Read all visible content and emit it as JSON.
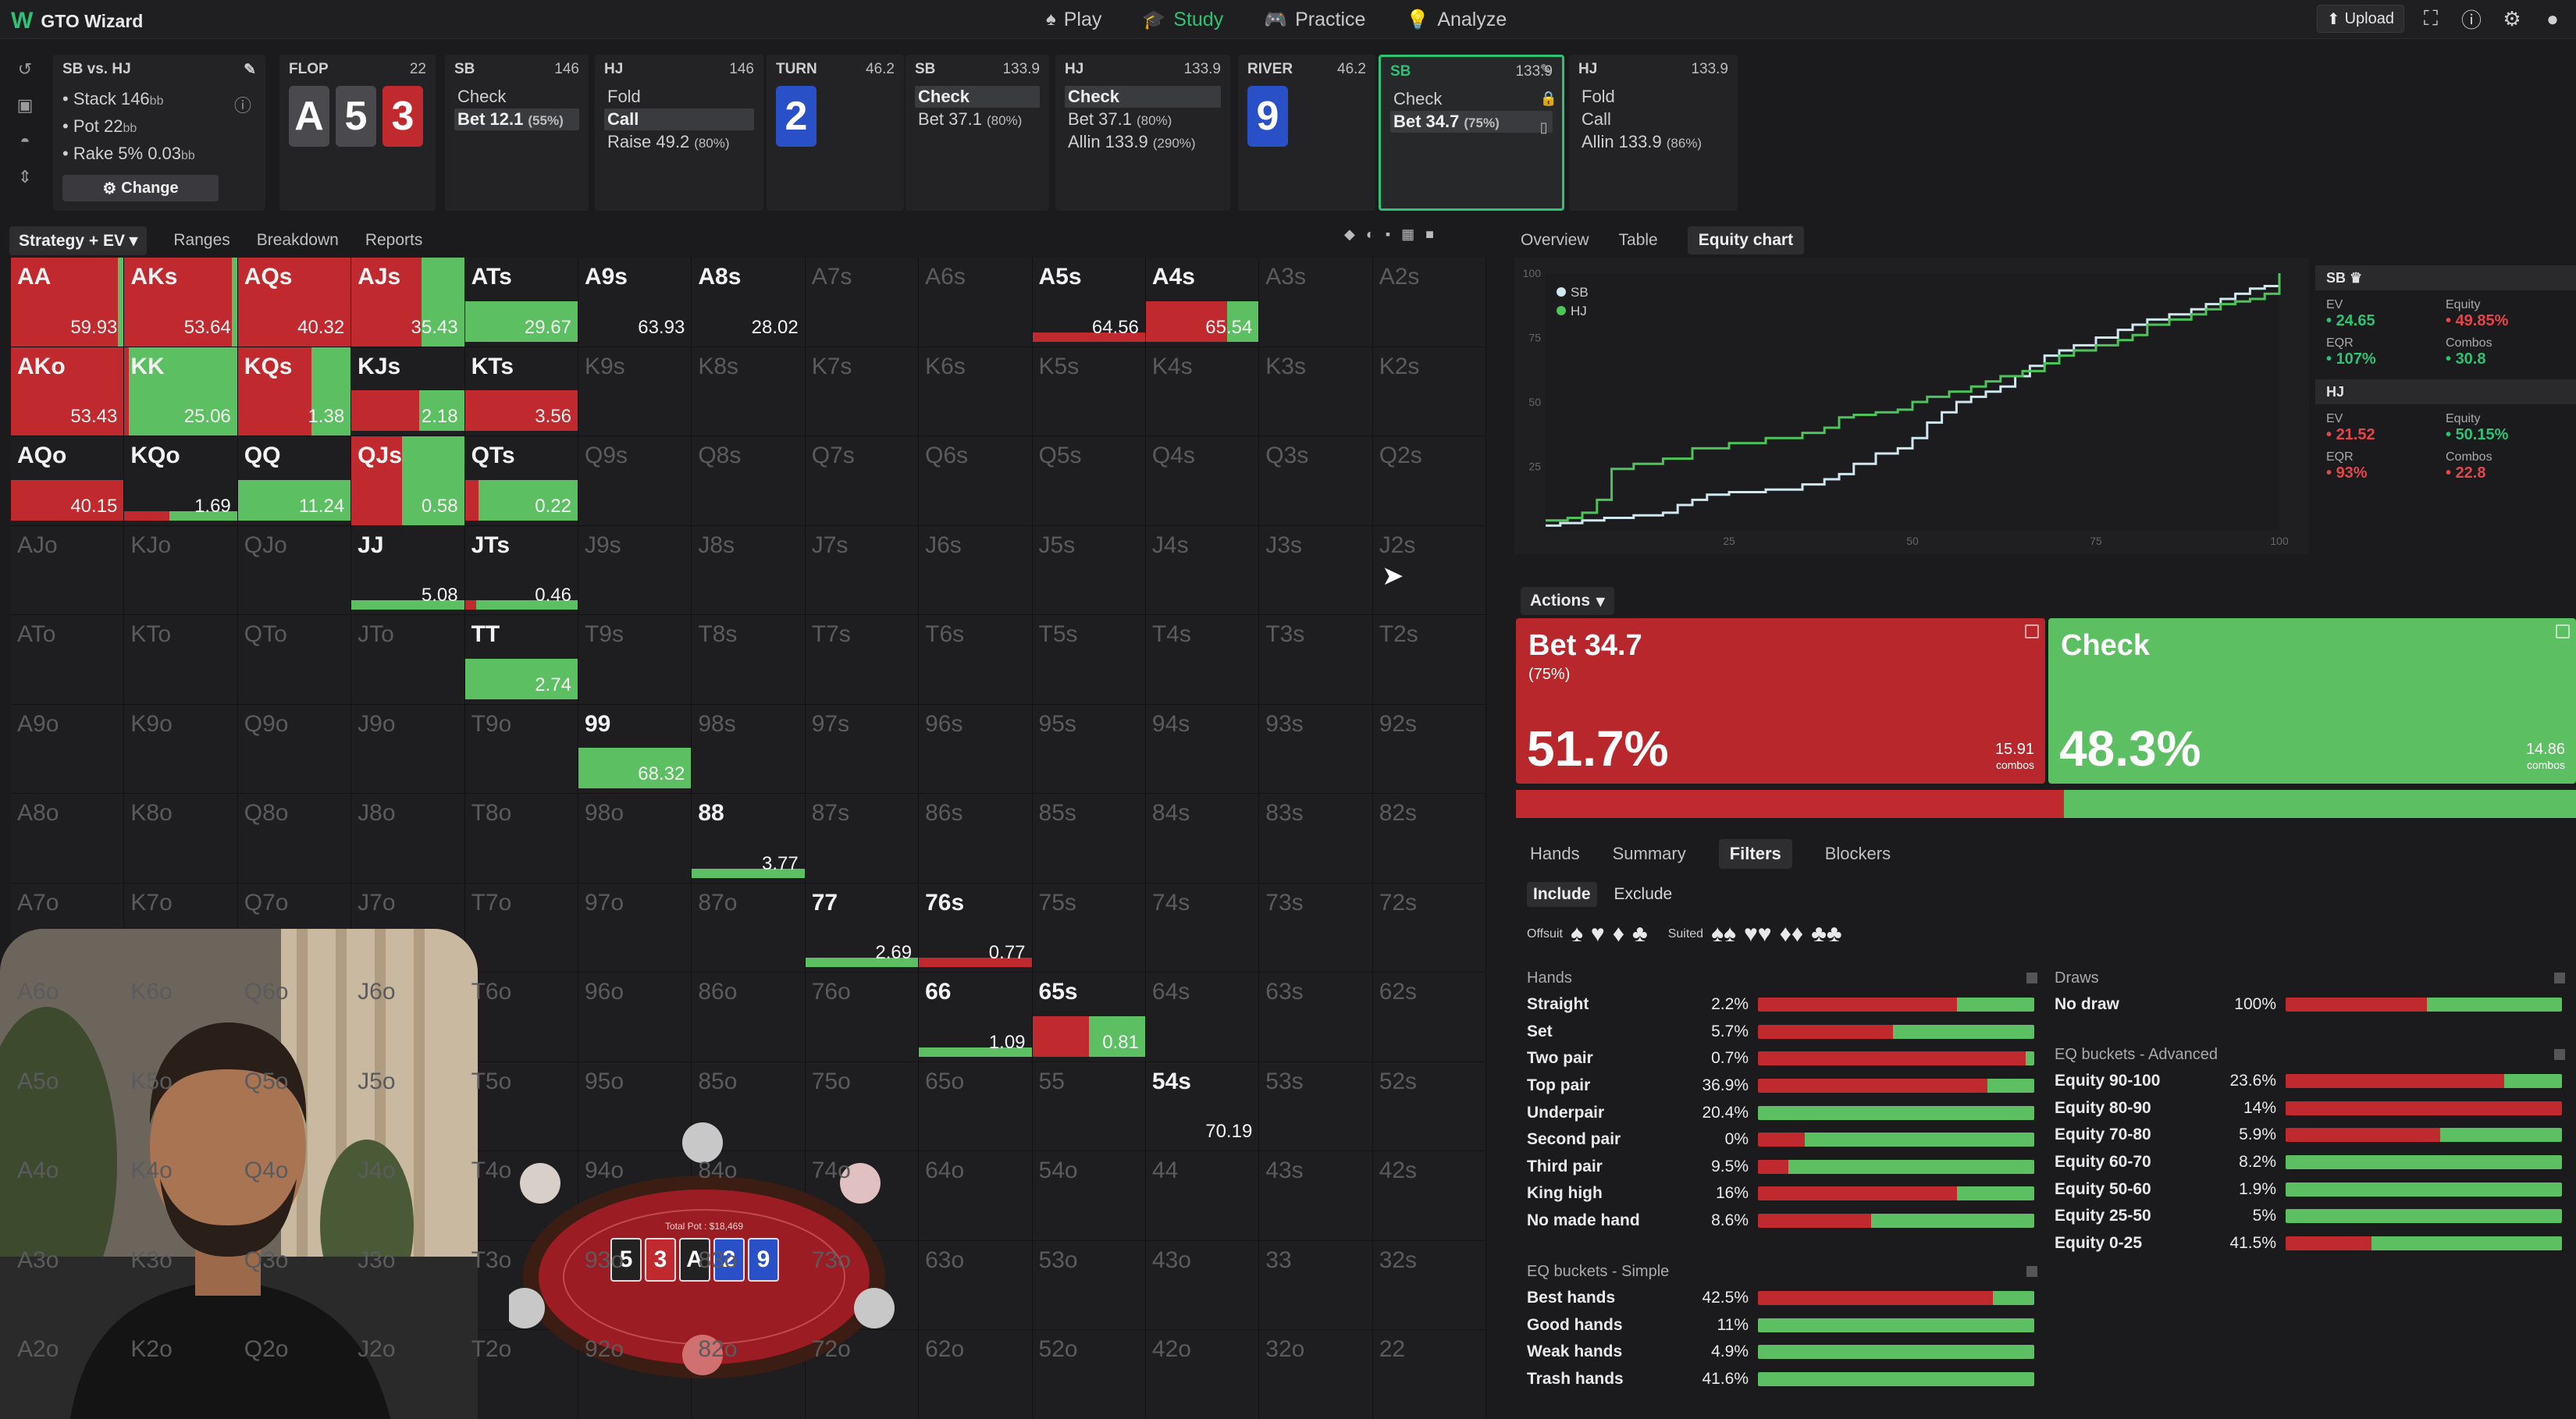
{
  "app": {
    "name": "GTO Wizard"
  },
  "nav": [
    {
      "icon": "spade-icon",
      "label": "Play"
    },
    {
      "icon": "graduation-cap-icon",
      "label": "Study"
    },
    {
      "icon": "gamepad-icon",
      "label": "Practice"
    },
    {
      "icon": "lightbulb-icon",
      "label": "Analyze"
    }
  ],
  "nav_active": "Study",
  "topright": {
    "upload": "Upload"
  },
  "spot": {
    "title": "SB vs. HJ",
    "stack_label": "Stack 146",
    "stack_unit": "bb",
    "pot_label": "Pot 22",
    "pot_unit": "bb",
    "rake_label": "Rake 5% 0.03",
    "rake_unit": "bb",
    "change": "Change"
  },
  "streets": [
    {
      "title": "FLOP",
      "value": "22",
      "cards": [
        "A",
        "5",
        "3"
      ]
    },
    {
      "title": "SB",
      "value": "146",
      "options": [
        {
          "label": "Check",
          "pct": ""
        },
        {
          "label": "Bet 12.1",
          "pct": "(55%)",
          "hl": true
        }
      ]
    },
    {
      "title": "HJ",
      "value": "146",
      "options": [
        {
          "label": "Fold",
          "pct": ""
        },
        {
          "label": "Call",
          "pct": "",
          "hl": true
        },
        {
          "label": "Raise 49.2",
          "pct": "(80%)"
        }
      ]
    },
    {
      "title": "TURN",
      "value": "46.2",
      "cards": [
        "2"
      ]
    },
    {
      "title": "SB",
      "value": "133.9",
      "options": [
        {
          "label": "Check",
          "pct": "",
          "hl": true
        },
        {
          "label": "Bet 37.1",
          "pct": "(80%)"
        }
      ]
    },
    {
      "title": "HJ",
      "value": "133.9",
      "options": [
        {
          "label": "Check",
          "pct": "",
          "hl": true
        },
        {
          "label": "Bet 37.1",
          "pct": "(80%)"
        },
        {
          "label": "Allin 133.9",
          "pct": "(290%)"
        }
      ]
    },
    {
      "title": "RIVER",
      "value": "46.2",
      "cards": [
        "9"
      ]
    },
    {
      "title": "SB",
      "value": "133.9",
      "options": [
        {
          "label": "Check",
          "pct": ""
        },
        {
          "label": "Bet 34.7",
          "pct": "(75%)",
          "hl": true
        }
      ]
    },
    {
      "title": "HJ",
      "value": "133.9",
      "options": [
        {
          "label": "Fold",
          "pct": ""
        },
        {
          "label": "Call",
          "pct": ""
        },
        {
          "label": "Allin 133.9",
          "pct": "(86%)"
        }
      ]
    }
  ],
  "subtabs": [
    "Strategy + EV",
    "Ranges",
    "Breakdown",
    "Reports"
  ],
  "grid": {
    "ranks": [
      "A",
      "K",
      "Q",
      "J",
      "T",
      "9",
      "8",
      "7",
      "6",
      "5",
      "4",
      "3",
      "2"
    ],
    "cells": {
      "AA": {
        "ev": "59.93",
        "bet": 0.95,
        "kind": "full"
      },
      "AKs": {
        "ev": "53.64",
        "bet": 0.95,
        "kind": "full"
      },
      "AQs": {
        "ev": "40.32",
        "bet": 1.0,
        "kind": "full"
      },
      "AJs": {
        "ev": "35.43",
        "bet": 0.62,
        "kind": "full"
      },
      "ATs": {
        "ev": "29.67",
        "bet": 0,
        "kind": "strip"
      },
      "A9s": {
        "ev": "63.93",
        "bet": 0,
        "kind": "none"
      },
      "A8s": {
        "ev": "28.02",
        "bet": 0,
        "kind": "none"
      },
      "A5s": {
        "ev": "64.56",
        "bet": 1.0,
        "kind": "thin"
      },
      "A4s": {
        "ev": "65.54",
        "bet": 0.72,
        "kind": "strip"
      },
      "AKo": {
        "ev": "53.43",
        "bet": 1.0,
        "kind": "full"
      },
      "KK": {
        "ev": "25.06",
        "bet": 0.04,
        "kind": "full"
      },
      "KQs": {
        "ev": "1.38",
        "bet": 0.65,
        "kind": "full"
      },
      "KJs": {
        "ev": "2.18",
        "bet": 0.6,
        "kind": "strip"
      },
      "KTs": {
        "ev": "3.56",
        "bet": 1.0,
        "kind": "strip"
      },
      "AQo": {
        "ev": "40.15",
        "bet": 1.0,
        "kind": "strip"
      },
      "KQo": {
        "ev": "1.69",
        "bet": 0.4,
        "kind": "thin"
      },
      "QQ": {
        "ev": "11.24",
        "bet": 0,
        "kind": "strip"
      },
      "QJs": {
        "ev": "0.58",
        "bet": 0.45,
        "kind": "full"
      },
      "QTs": {
        "ev": "0.22",
        "bet": 0.12,
        "kind": "strip"
      },
      "JJ": {
        "ev": "5.08",
        "bet": 0,
        "kind": "thin"
      },
      "JTs": {
        "ev": "0.46",
        "bet": 0.1,
        "kind": "thin"
      },
      "TT": {
        "ev": "2.74",
        "bet": 0,
        "kind": "strip"
      },
      "99": {
        "ev": "68.32",
        "bet": 0,
        "kind": "strip"
      },
      "88": {
        "ev": "3.77",
        "bet": 0,
        "kind": "thin"
      },
      "77": {
        "ev": "2.69",
        "bet": 0,
        "kind": "thin"
      },
      "76s": {
        "ev": "0.77",
        "bet": 1.0,
        "kind": "thin"
      },
      "66": {
        "ev": "1.09",
        "bet": 0,
        "kind": "thin"
      },
      "65s": {
        "ev": "0.81",
        "bet": 0.5,
        "kind": "strip"
      },
      "54s": {
        "ev": "70.19",
        "bet": 0,
        "kind": "none"
      }
    }
  },
  "rtabs": [
    "Overview",
    "Table",
    "Equity chart"
  ],
  "chart_data": {
    "type": "line",
    "title": "",
    "xlabel": "",
    "ylabel": "",
    "xlim": [
      0,
      100
    ],
    "ylim": [
      0,
      100
    ],
    "x_ticks": [
      "25",
      "50",
      "75",
      "100"
    ],
    "y_ticks": [
      "100",
      "75",
      "50",
      "25"
    ],
    "legend": "top-left",
    "series": [
      {
        "name": "SB",
        "color": "#cfe8f0",
        "x": [
          0,
          2,
          5,
          8,
          12,
          16,
          18,
          20,
          22,
          25,
          30,
          35,
          38,
          40,
          42,
          45,
          48,
          50,
          52,
          54,
          56,
          58,
          60,
          62,
          64,
          66,
          68,
          70,
          72,
          75,
          78,
          80,
          82,
          85,
          88,
          90,
          92,
          94,
          96,
          98,
          100
        ],
        "y": [
          2,
          3,
          4,
          5,
          6,
          7,
          10,
          12,
          14,
          15,
          16,
          18,
          20,
          22,
          26,
          30,
          32,
          36,
          42,
          46,
          50,
          52,
          54,
          56,
          60,
          64,
          68,
          70,
          72,
          75,
          78,
          80,
          82,
          84,
          86,
          88,
          90,
          92,
          94,
          95,
          100
        ]
      },
      {
        "name": "HJ",
        "color": "#4cc45a",
        "x": [
          0,
          3,
          5,
          7,
          9,
          12,
          16,
          20,
          25,
          30,
          35,
          38,
          40,
          42,
          45,
          48,
          50,
          52,
          55,
          58,
          60,
          62,
          65,
          68,
          70,
          72,
          75,
          78,
          80,
          82,
          85,
          88,
          90,
          92,
          94,
          96,
          98,
          100
        ],
        "y": [
          4,
          5,
          7,
          12,
          24,
          26,
          28,
          32,
          34,
          36,
          38,
          40,
          44,
          45,
          46,
          47,
          50,
          52,
          54,
          56,
          58,
          60,
          62,
          65,
          68,
          70,
          72,
          74,
          76,
          80,
          82,
          84,
          86,
          88,
          89,
          90,
          92,
          100
        ]
      }
    ]
  },
  "stats": {
    "sb": {
      "name": "SB",
      "ev_label": "EV",
      "ev": "24.65",
      "equity_label": "Equity",
      "equity": "49.85%",
      "eqr_label": "EQR",
      "eqr": "107%",
      "combos_label": "Combos",
      "combos": "30.8"
    },
    "hj": {
      "name": "HJ",
      "ev_label": "EV",
      "ev": "21.52",
      "equity_label": "Equity",
      "equity": "50.15%",
      "eqr_label": "EQR",
      "eqr": "93%",
      "combos_label": "Combos",
      "combos": "22.8"
    }
  },
  "actions": {
    "label": "Actions",
    "bet": {
      "title": "Bet 34.7",
      "sub": "(75%)",
      "pct": "51.7%",
      "combos": "15.91",
      "combos_unit": "combos",
      "freq": 0.517
    },
    "check": {
      "title": "Check",
      "pct": "48.3%",
      "combos": "14.86",
      "combos_unit": "combos",
      "freq": 0.483
    }
  },
  "ftabs": [
    "Hands",
    "Summary",
    "Filters",
    "Blockers"
  ],
  "inex": [
    "Include",
    "Exclude"
  ],
  "suits": {
    "offsuit": "Offsuit",
    "suited": "Suited"
  },
  "filters": {
    "hands_title": "Hands",
    "hands": [
      {
        "name": "Straight",
        "pct": "2.2%",
        "bet": 0.72
      },
      {
        "name": "Set",
        "pct": "5.7%",
        "bet": 0.49
      },
      {
        "name": "Two pair",
        "pct": "0.7%",
        "bet": 0.97
      },
      {
        "name": "Top pair",
        "pct": "36.9%",
        "bet": 0.83
      },
      {
        "name": "Underpair",
        "pct": "20.4%",
        "bet": 0
      },
      {
        "name": "Second pair",
        "pct": "0%",
        "bet": 0.17
      },
      {
        "name": "Third pair",
        "pct": "9.5%",
        "bet": 0.11
      },
      {
        "name": "King high",
        "pct": "16%",
        "bet": 0.72
      },
      {
        "name": "No made hand",
        "pct": "8.6%",
        "bet": 0.41
      }
    ],
    "eq_simple_title": "EQ buckets - Simple",
    "eq_simple": [
      {
        "name": "Best hands",
        "pct": "42.5%",
        "bet": 0.85
      },
      {
        "name": "Good hands",
        "pct": "11%",
        "bet": 0
      },
      {
        "name": "Weak hands",
        "pct": "4.9%",
        "bet": 0
      },
      {
        "name": "Trash hands",
        "pct": "41.6%",
        "bet": 0
      }
    ],
    "draws_title": "Draws",
    "draws": [
      {
        "name": "No draw",
        "pct": "100%",
        "bet": 0.51
      }
    ],
    "eq_adv_title": "EQ buckets - Advanced",
    "eq_adv": [
      {
        "name": "Equity 90-100",
        "pct": "23.6%",
        "bet": 0.79
      },
      {
        "name": "Equity 80-90",
        "pct": "14%",
        "bet": 1.0
      },
      {
        "name": "Equity 70-80",
        "pct": "5.9%",
        "bet": 0.56
      },
      {
        "name": "Equity 60-70",
        "pct": "8.2%",
        "bet": 0
      },
      {
        "name": "Equity 50-60",
        "pct": "1.9%",
        "bet": 0
      },
      {
        "name": "Equity 25-50",
        "pct": "5%",
        "bet": 0
      },
      {
        "name": "Equity 0-25",
        "pct": "41.5%",
        "bet": 0.31
      }
    ]
  },
  "poker": {
    "pot": "Total Pot : $18,469",
    "board": [
      "5",
      "3",
      "A",
      "2",
      "9"
    ]
  }
}
